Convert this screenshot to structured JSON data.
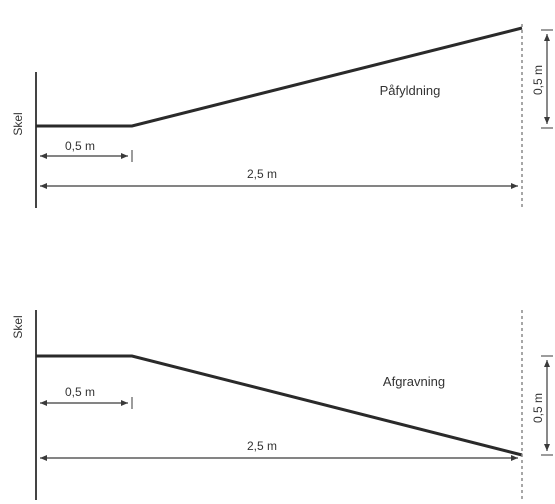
{
  "colors": {
    "profile_line": "#2a2a2a",
    "dimension_line": "#3a3a3a",
    "boundary_line": "#444444",
    "dashed_line": "#8a8a8a",
    "text": "#333333"
  },
  "top_diagram": {
    "boundary_label": "Skel",
    "flat_width_label": "0,5 m",
    "total_width_label": "2,5 m",
    "height_label": "0,5 m",
    "name_label": "Påfyldning",
    "profile": "rising"
  },
  "bottom_diagram": {
    "boundary_label": "Skel",
    "flat_width_label": "0,5 m",
    "total_width_label": "2,5 m",
    "height_label": "0,5 m",
    "name_label": "Afgravning",
    "profile": "falling"
  }
}
